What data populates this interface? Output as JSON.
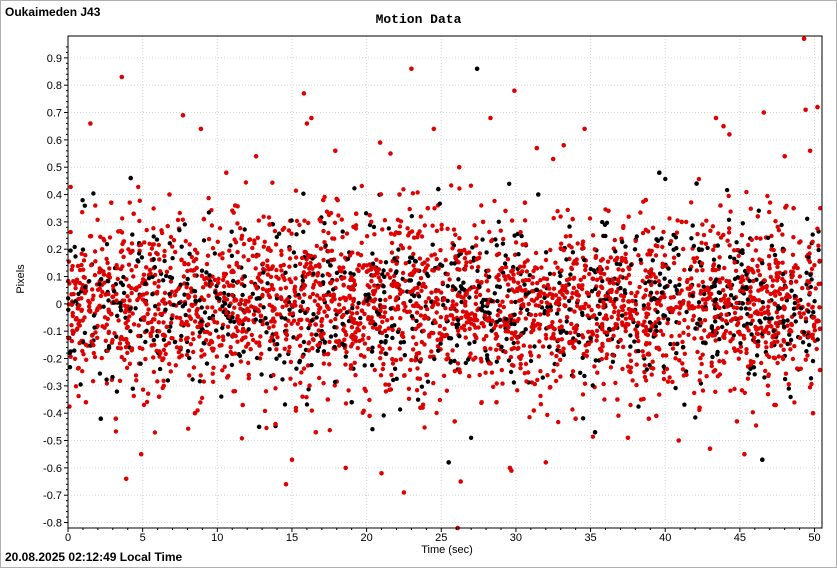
{
  "header": {
    "station": "Oukaimeden J43"
  },
  "footer": {
    "timestamp": "20.08.2025 02:12:49 Local Time"
  },
  "colors": {
    "series_red": "#e00000",
    "series_black": "#000000",
    "grid": "#d8d8d8"
  },
  "chart_data": {
    "type": "scatter",
    "title": "Motion Data",
    "xlabel": "Time (sec)",
    "ylabel": "Pixels",
    "xlim": [
      0,
      50.5
    ],
    "ylim": [
      -0.82,
      0.98
    ],
    "grid": true,
    "legend": "none",
    "x_ticks": [
      0,
      5,
      10,
      15,
      20,
      25,
      30,
      35,
      40,
      45,
      50
    ],
    "y_ticks": [
      -0.8,
      -0.7,
      -0.6,
      -0.5,
      -0.4,
      -0.3,
      -0.2,
      -0.1,
      0,
      0.1,
      0.2,
      0.3,
      0.4,
      0.5,
      0.6,
      0.7,
      0.8,
      0.9
    ],
    "series": [
      {
        "color": "#e00000",
        "points": [
          [
            3.6,
            0.83
          ],
          [
            1.5,
            0.66
          ],
          [
            7.7,
            0.69
          ],
          [
            8.9,
            0.64
          ],
          [
            15.8,
            0.77
          ],
          [
            16.0,
            0.66
          ],
          [
            16.3,
            0.68
          ],
          [
            23.0,
            0.86
          ],
          [
            24.5,
            0.64
          ],
          [
            28.3,
            0.68
          ],
          [
            29.9,
            0.78
          ],
          [
            32.5,
            0.53
          ],
          [
            34.6,
            0.64
          ],
          [
            43.4,
            0.68
          ],
          [
            43.9,
            0.65
          ],
          [
            44.3,
            0.62
          ],
          [
            46.6,
            0.7
          ],
          [
            49.3,
            0.97
          ],
          [
            49.4,
            0.71
          ],
          [
            50.2,
            0.72
          ],
          [
            10.6,
            0.48
          ],
          [
            12.6,
            0.54
          ],
          [
            17.9,
            0.56
          ],
          [
            20.9,
            0.59
          ],
          [
            21.6,
            0.55
          ],
          [
            26.2,
            0.5
          ],
          [
            29.3,
            0.34
          ],
          [
            31.4,
            0.57
          ],
          [
            33.2,
            0.58
          ],
          [
            48.0,
            0.54
          ],
          [
            49.7,
            0.56
          ],
          [
            3.9,
            -0.64
          ],
          [
            4.9,
            -0.55
          ],
          [
            14.6,
            -0.66
          ],
          [
            15.0,
            -0.57
          ],
          [
            18.6,
            -0.6
          ],
          [
            21.0,
            -0.62
          ],
          [
            22.5,
            -0.69
          ],
          [
            26.1,
            -0.82
          ],
          [
            26.3,
            -0.65
          ],
          [
            29.6,
            -0.6
          ],
          [
            29.7,
            -0.61
          ],
          [
            32.0,
            -0.58
          ],
          [
            43.0,
            -0.53
          ],
          [
            45.3,
            -0.55
          ],
          [
            38.9,
            -0.42
          ],
          [
            16.6,
            -0.47
          ],
          [
            40.9,
            -0.5
          ],
          [
            37.5,
            -0.49
          ],
          [
            2.9,
            0.37
          ],
          [
            4.4,
            0.33
          ],
          [
            6.8,
            0.4
          ],
          [
            9.1,
            0.31
          ],
          [
            11.2,
            0.36
          ],
          [
            13.5,
            0.29
          ],
          [
            17.1,
            0.38
          ],
          [
            19.3,
            0.33
          ],
          [
            22.2,
            0.4
          ],
          [
            24.1,
            0.35
          ],
          [
            27.8,
            0.3
          ],
          [
            30.6,
            0.37
          ],
          [
            33.8,
            0.31
          ],
          [
            36.2,
            0.34
          ],
          [
            38.7,
            0.38
          ],
          [
            41.1,
            0.3
          ],
          [
            43.7,
            0.36
          ],
          [
            46.2,
            0.32
          ],
          [
            48.6,
            0.35
          ],
          [
            1.2,
            -0.36
          ],
          [
            3.2,
            -0.42
          ],
          [
            6.1,
            -0.34
          ],
          [
            8.5,
            -0.4
          ],
          [
            11.7,
            -0.37
          ],
          [
            13.9,
            -0.44
          ],
          [
            17.4,
            -0.35
          ],
          [
            20.2,
            -0.41
          ],
          [
            23.6,
            -0.38
          ],
          [
            25.9,
            -0.43
          ],
          [
            28.7,
            -0.36
          ],
          [
            31.2,
            -0.39
          ],
          [
            34.0,
            -0.42
          ],
          [
            36.8,
            -0.35
          ],
          [
            39.4,
            -0.41
          ],
          [
            42.3,
            -0.38
          ],
          [
            44.8,
            -0.43
          ],
          [
            47.4,
            -0.37
          ],
          [
            49.9,
            -0.4
          ]
        ]
      },
      {
        "color": "#000000",
        "points": [
          [
            27.4,
            0.86
          ],
          [
            39.6,
            0.48
          ],
          [
            4.2,
            0.46
          ],
          [
            24.8,
            0.42
          ],
          [
            42.1,
            0.44
          ],
          [
            31.5,
            0.4
          ],
          [
            46.5,
            -0.57
          ],
          [
            25.5,
            -0.58
          ],
          [
            12.8,
            -0.45
          ],
          [
            2.2,
            -0.42
          ],
          [
            35.3,
            -0.47
          ],
          [
            19.0,
            -0.36
          ]
        ]
      }
    ],
    "generated_cloud": {
      "count": 3600,
      "red_fraction": 0.74,
      "mean": 0.0,
      "stdev": 0.16,
      "clip": [
        -0.5,
        0.46
      ],
      "seed": 43
    }
  }
}
